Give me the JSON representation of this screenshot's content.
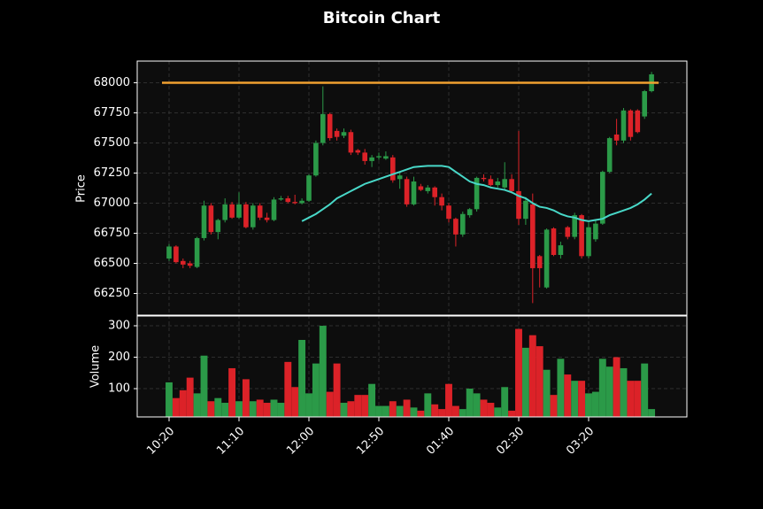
{
  "chart_data": {
    "type": "candlestick",
    "title": "Bitcoin Chart",
    "ylabel": "Price",
    "volume_label": "Volume",
    "categories": [
      "10:20",
      null,
      null,
      null,
      null,
      null,
      null,
      null,
      null,
      null,
      "11:10",
      null,
      null,
      null,
      null,
      null,
      null,
      null,
      null,
      null,
      "12:00",
      null,
      null,
      null,
      null,
      null,
      null,
      null,
      null,
      null,
      "12:50",
      null,
      null,
      null,
      null,
      null,
      null,
      null,
      null,
      null,
      "01:40",
      null,
      null,
      null,
      null,
      null,
      null,
      null,
      null,
      null,
      "02:30",
      null,
      null,
      null,
      null,
      null,
      null,
      null,
      null,
      null,
      "03:20",
      null,
      null,
      null,
      null,
      null,
      null,
      null,
      null,
      null
    ],
    "open": [
      66540,
      66640,
      66520,
      66500,
      66470,
      66710,
      66980,
      66760,
      66860,
      66990,
      66880,
      66990,
      66800,
      66980,
      66880,
      66860,
      67030,
      67040,
      67010,
      67000,
      67020,
      67230,
      67500,
      67740,
      67600,
      67560,
      67590,
      67440,
      67420,
      67350,
      67380,
      67370,
      67380,
      67200,
      67200,
      66990,
      67140,
      67100,
      67130,
      67050,
      66980,
      66870,
      66740,
      66900,
      66950,
      67210,
      67200,
      67150,
      67130,
      67200,
      67100,
      66870,
      66990,
      66560,
      66300,
      66790,
      66570,
      66800,
      66720,
      66900,
      66560,
      66700,
      66830,
      67260,
      67570,
      67520,
      67770,
      67770,
      67720,
      67930
    ],
    "high": [
      66660,
      66650,
      66540,
      66520,
      66720,
      67020,
      67000,
      66870,
      67040,
      67010,
      67090,
      67010,
      67000,
      67000,
      66920,
      67050,
      67060,
      67060,
      67070,
      67040,
      67240,
      67520,
      67970,
      67750,
      67620,
      67620,
      67610,
      67450,
      67450,
      67400,
      67420,
      67430,
      67400,
      67260,
      67220,
      67220,
      67160,
      67150,
      67140,
      67080,
      67000,
      66880,
      66930,
      66960,
      67220,
      67240,
      67230,
      67210,
      67340,
      67240,
      67600,
      67050,
      67080,
      66570,
      66790,
      66800,
      66680,
      66810,
      66920,
      66910,
      66840,
      66860,
      67270,
      67550,
      67700,
      67790,
      67780,
      67780,
      67940,
      68090
    ],
    "low": [
      66520,
      66500,
      66460,
      66460,
      66460,
      66690,
      66740,
      66700,
      66840,
      66870,
      66870,
      66790,
      66780,
      66860,
      66840,
      66850,
      67020,
      67000,
      66990,
      66990,
      67010,
      67220,
      67480,
      67520,
      67520,
      67540,
      67400,
      67400,
      67320,
      67300,
      67360,
      67360,
      67170,
      67120,
      66970,
      66980,
      67100,
      67080,
      66980,
      66940,
      66840,
      66640,
      66720,
      66880,
      66930,
      67180,
      67140,
      67130,
      67110,
      67080,
      66820,
      66820,
      66170,
      66300,
      66290,
      66560,
      66540,
      66700,
      66700,
      66540,
      66540,
      66680,
      66820,
      67250,
      67480,
      67500,
      67520,
      67580,
      67700,
      67920
    ],
    "close": [
      66640,
      66510,
      66490,
      66480,
      66710,
      66980,
      66760,
      66860,
      66990,
      66880,
      66990,
      66800,
      66980,
      66880,
      66860,
      67030,
      67040,
      67010,
      67000,
      67020,
      67230,
      67500,
      67740,
      67540,
      67550,
      67590,
      67420,
      67420,
      67350,
      67380,
      67390,
      67390,
      67190,
      67230,
      66990,
      67180,
      67110,
      67130,
      67050,
      66980,
      66870,
      66740,
      66910,
      66950,
      67210,
      67200,
      67150,
      67180,
      67200,
      67100,
      66870,
      67020,
      66460,
      66460,
      66780,
      66570,
      66650,
      66720,
      66900,
      66560,
      66800,
      66830,
      67260,
      67540,
      67520,
      67770,
      67550,
      67590,
      67930,
      68070
    ],
    "volume": [
      120,
      70,
      95,
      135,
      85,
      205,
      60,
      70,
      55,
      165,
      60,
      130,
      60,
      65,
      55,
      65,
      55,
      185,
      105,
      255,
      85,
      180,
      300,
      90,
      180,
      55,
      60,
      80,
      80,
      115,
      45,
      45,
      60,
      45,
      65,
      40,
      30,
      85,
      50,
      35,
      115,
      45,
      35,
      100,
      85,
      65,
      55,
      40,
      105,
      30,
      290,
      230,
      270,
      235,
      160,
      80,
      195,
      145,
      125,
      125,
      85,
      90,
      195,
      170,
      200,
      165,
      125,
      125,
      180,
      35
    ],
    "up_color": "#2b9a48",
    "down_color": "#dc2228",
    "ma": {
      "color": "#48d8c8",
      "values": [
        null,
        null,
        null,
        null,
        null,
        null,
        null,
        null,
        null,
        null,
        null,
        null,
        null,
        null,
        null,
        null,
        null,
        null,
        null,
        66850,
        66880,
        66910,
        66950,
        66990,
        67040,
        67070,
        67100,
        67130,
        67160,
        67180,
        67200,
        67220,
        67240,
        67260,
        67280,
        67300,
        67305,
        67310,
        67310,
        67310,
        67300,
        67260,
        67220,
        67180,
        67160,
        67150,
        67130,
        67120,
        67110,
        67090,
        67060,
        67040,
        67000,
        66970,
        66960,
        66940,
        66910,
        66890,
        66880,
        66860,
        66850,
        66860,
        66870,
        66900,
        66920,
        66940,
        66960,
        66990,
        67030,
        67080
      ]
    },
    "hline": {
      "value": 68000,
      "color": "#f0a030"
    },
    "ylim": [
      66070,
      68180
    ],
    "yticks": [
      66250,
      66500,
      66750,
      67000,
      67250,
      67500,
      67750,
      68000
    ],
    "vol_ylim": [
      10,
      331
    ],
    "vol_yticks": [
      100,
      200,
      300
    ],
    "grid": true
  }
}
